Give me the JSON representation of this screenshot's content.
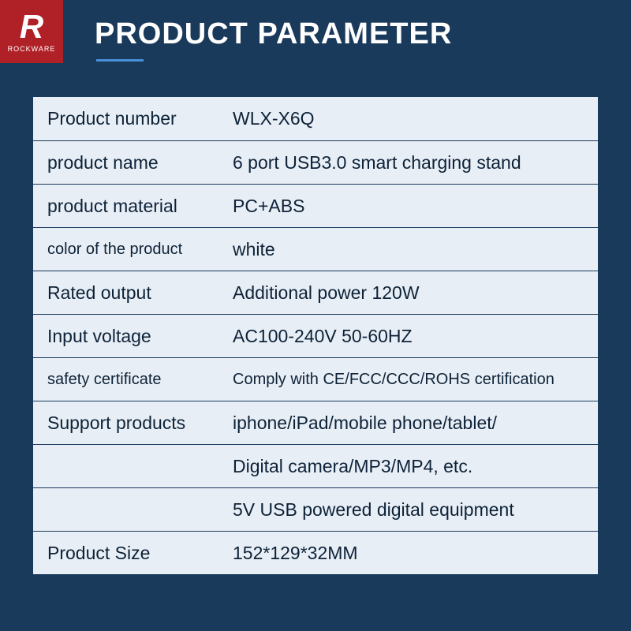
{
  "logo": {
    "letter": "R",
    "brand": "ROCKWARE",
    "bg_color": "#b02127"
  },
  "header": {
    "title": "PRODUCT PARAMETER",
    "underline_color": "#4a90d9"
  },
  "colors": {
    "page_bg": "#1a3a5c",
    "row_bg": "#e8eef5",
    "text": "#0d2238",
    "title_text": "#ffffff"
  },
  "rows": [
    {
      "label": "Product number",
      "value": "WLX-X6Q"
    },
    {
      "label": "product name",
      "value": "6 port USB3.0 smart charging stand"
    },
    {
      "label": "product material",
      "value": "PC+ABS"
    },
    {
      "label": "color of the product",
      "value": "white",
      "label_small": true
    },
    {
      "label": "Rated output",
      "value": "Additional power 120W"
    },
    {
      "label": "Input voltage",
      "value": "AC100-240V 50-60HZ"
    },
    {
      "label": "safety certificate",
      "value": "Comply with CE/FCC/CCC/ROHS certification",
      "label_small": true,
      "value_small": true
    },
    {
      "label": "Support products",
      "value": "iphone/iPad/mobile phone/tablet/"
    },
    {
      "label": "",
      "value": "Digital camera/MP3/MP4, etc."
    },
    {
      "label": "",
      "value": "5V USB powered digital equipment"
    },
    {
      "label": "Product Size",
      "value": "152*129*32MM"
    }
  ]
}
